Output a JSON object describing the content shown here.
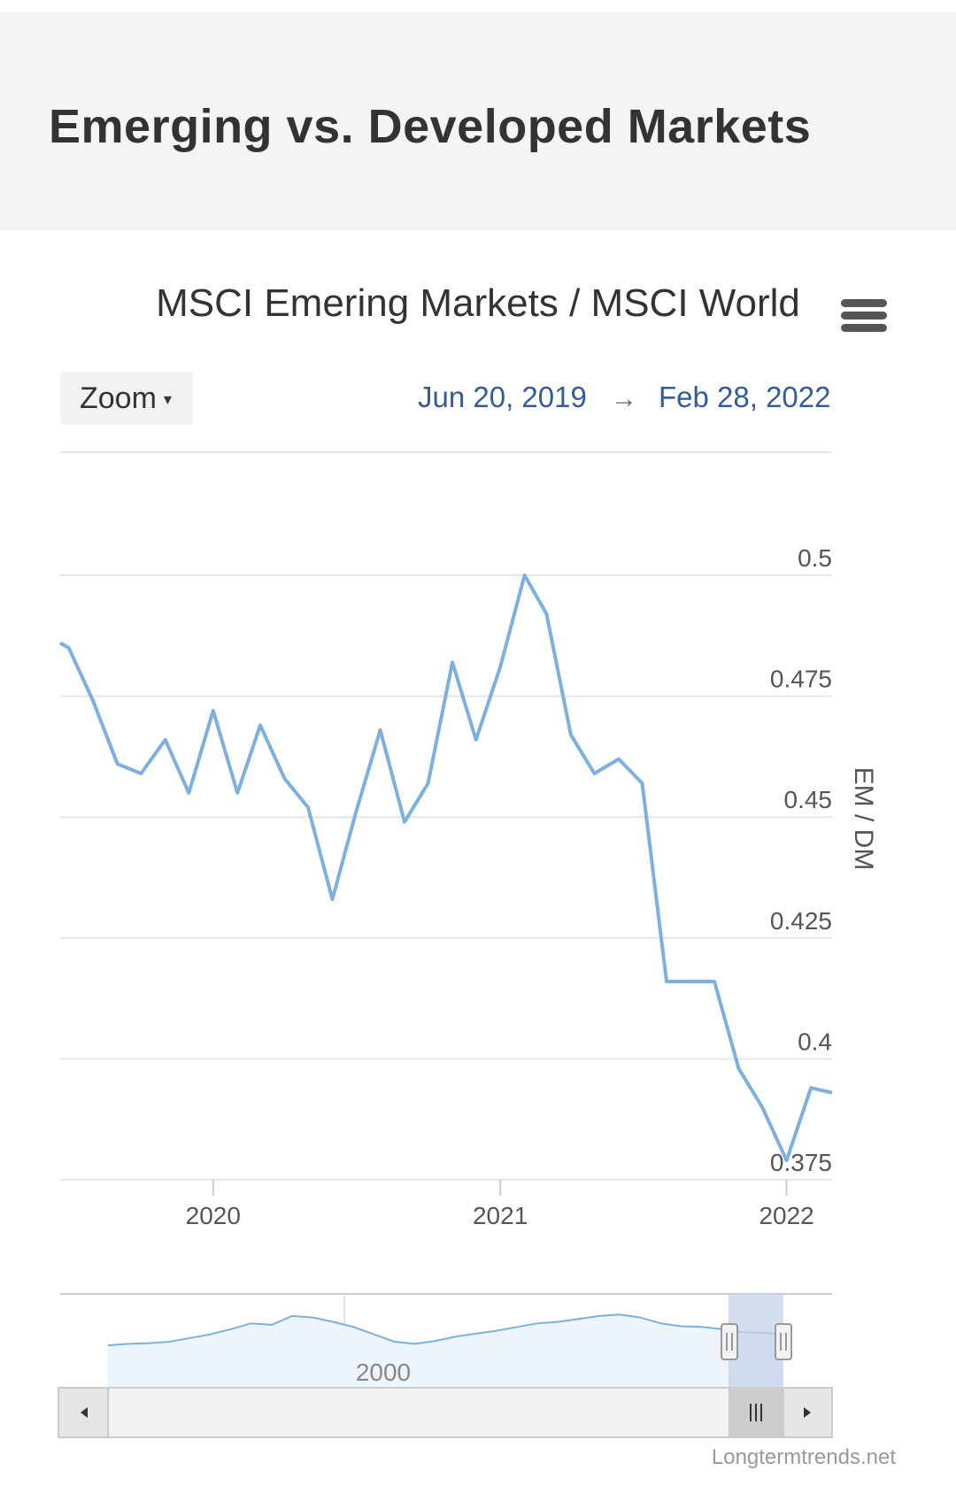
{
  "page": {
    "title": "Emerging vs. Developed Markets"
  },
  "toolbar": {
    "zoom_label": "Zoom",
    "caret": "▾",
    "range_from": "Jun 20, 2019",
    "range_arrow": "→",
    "range_to": "Feb 28, 2022"
  },
  "credit": "Longtermtrends.net",
  "colors": {
    "series": "#7cb0de",
    "grid": "#e6e6e6",
    "navigator_mask": "#c7d3ea",
    "header_bg": "#f4f4f4"
  },
  "icons": {
    "menu": "hamburger-menu-icon",
    "scroll_left": "triangle-left-icon",
    "scroll_right": "triangle-right-icon",
    "scroll_grip": "grip-icon",
    "handle": "navigator-handle-icon"
  },
  "chart_data": {
    "type": "line",
    "title": "MSCI Emering Markets / MSCI World",
    "ylabel": "EM / DM",
    "ylim": [
      0.375,
      0.5
    ],
    "yticks": [
      "0.375",
      "0.4",
      "0.425",
      "0.45",
      "0.475",
      "0.5"
    ],
    "xticks": [
      "2020",
      "2021",
      "2022"
    ],
    "xlim": [
      "2019-06-20",
      "2022-02-28"
    ],
    "grid": true,
    "series": [
      {
        "x": [
          "2019-06-20",
          "2019-07-01",
          "2019-08-01",
          "2019-09-01",
          "2019-10-01",
          "2019-11-01",
          "2019-12-01",
          "2020-01-01",
          "2020-02-01",
          "2020-03-01",
          "2020-04-01",
          "2020-05-01",
          "2020-06-01",
          "2020-07-01",
          "2020-08-01",
          "2020-09-01",
          "2020-10-01",
          "2020-11-01",
          "2020-12-01",
          "2021-01-01",
          "2021-02-01",
          "2021-03-01",
          "2021-04-01",
          "2021-05-01",
          "2021-06-01",
          "2021-07-01",
          "2021-08-01",
          "2021-09-01",
          "2021-10-01",
          "2021-11-01",
          "2021-12-01",
          "2022-01-01",
          "2022-02-01",
          "2022-02-28"
        ],
        "values": [
          0.486,
          0.485,
          0.474,
          0.461,
          0.459,
          0.466,
          0.455,
          0.472,
          0.455,
          0.469,
          0.458,
          0.452,
          0.433,
          0.451,
          0.468,
          0.449,
          0.457,
          0.482,
          0.466,
          0.481,
          0.5,
          0.492,
          0.467,
          0.459,
          0.462,
          0.457,
          0.416,
          0.416,
          0.416,
          0.398,
          0.39,
          0.379,
          0.394,
          0.393
        ]
      }
    ],
    "navigator": {
      "xtick": "2000",
      "values": [
        0.3,
        0.32,
        0.33,
        0.35,
        0.4,
        0.45,
        0.52,
        0.6,
        0.58,
        0.7,
        0.68,
        0.62,
        0.55,
        0.45,
        0.35,
        0.32,
        0.36,
        0.42,
        0.46,
        0.5,
        0.55,
        0.6,
        0.62,
        0.66,
        0.7,
        0.72,
        0.68,
        0.6,
        0.56,
        0.55,
        0.52,
        0.48,
        0.47,
        0.45
      ]
    }
  }
}
